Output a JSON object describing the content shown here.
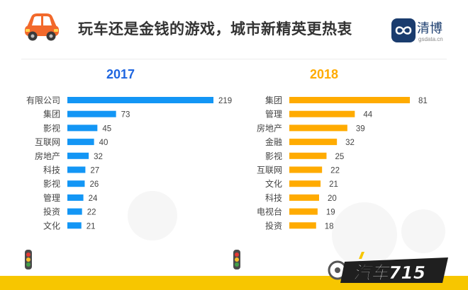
{
  "title": "玩车还是金钱的游戏，城市新精英更热衷",
  "logo": {
    "name": "清博",
    "sub": "gsdata.cn"
  },
  "brand_text": "汽车715",
  "colors": {
    "blue": "#1396f5",
    "orange": "#ffab00",
    "yellow": "#f7c600",
    "car": "#f2692b"
  },
  "chart_data": [
    {
      "type": "bar",
      "orientation": "horizontal",
      "title": "2017",
      "categories": [
        "有限公司",
        "集团",
        "影视",
        "互联网",
        "房地产",
        "科技",
        "影视",
        "管理",
        "投资",
        "文化"
      ],
      "values": [
        219,
        73,
        45,
        40,
        32,
        27,
        26,
        24,
        22,
        21
      ],
      "xlim": [
        0,
        219
      ],
      "color": "#1396f5",
      "data_labels": true,
      "grid": false
    },
    {
      "type": "bar",
      "orientation": "horizontal",
      "title": "2018",
      "categories": [
        "集团",
        "管理",
        "房地产",
        "金融",
        "影视",
        "互联网",
        "文化",
        "科技",
        "电视台",
        "投资"
      ],
      "values": [
        81,
        44,
        39,
        32,
        25,
        22,
        21,
        20,
        19,
        18
      ],
      "xlim": [
        0,
        81
      ],
      "color": "#ffab00",
      "data_labels": true,
      "grid": false
    }
  ]
}
